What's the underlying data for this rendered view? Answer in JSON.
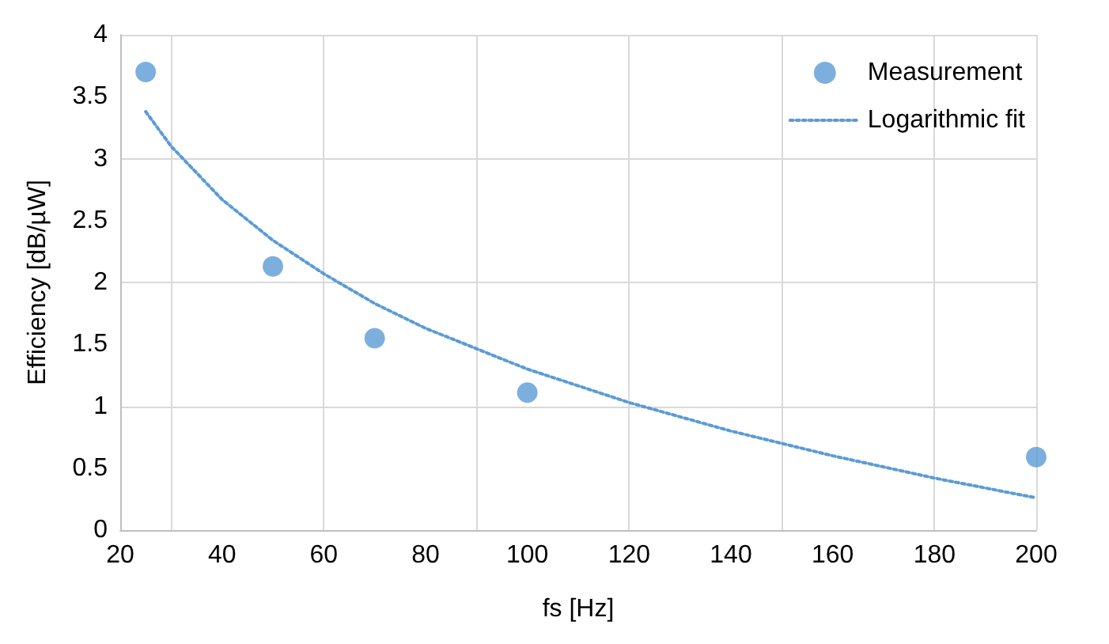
{
  "chart_data": {
    "type": "scatter",
    "xlabel": "fs [Hz]",
    "ylabel": "Efficiency [dB/µW]",
    "xlim": [
      20,
      200
    ],
    "xticks": [
      20,
      40,
      60,
      80,
      100,
      120,
      140,
      160,
      180,
      200
    ],
    "ylim": [
      0,
      4
    ],
    "yticks": [
      0,
      0.5,
      1,
      1.5,
      2,
      2.5,
      3,
      3.5,
      4
    ],
    "grid": true,
    "legend": "top right",
    "series": [
      {
        "name": "Measurement",
        "marker": "circle",
        "color": "#5b9bd5",
        "x": [
          25,
          50,
          70,
          100,
          200
        ],
        "values": [
          3.7,
          2.13,
          1.55,
          1.11,
          0.59
        ]
      },
      {
        "name": "Logarithmic fit",
        "type": "line",
        "marker": "none",
        "line_style": "dotted",
        "color": "#5b9bd5",
        "x": [
          25,
          30,
          40,
          50,
          60,
          70,
          80,
          100,
          120,
          140,
          160,
          180,
          200
        ],
        "values": [
          3.38,
          3.1,
          2.67,
          2.34,
          2.07,
          1.83,
          1.63,
          1.3,
          1.03,
          0.8,
          0.6,
          0.42,
          0.26
        ]
      }
    ]
  }
}
